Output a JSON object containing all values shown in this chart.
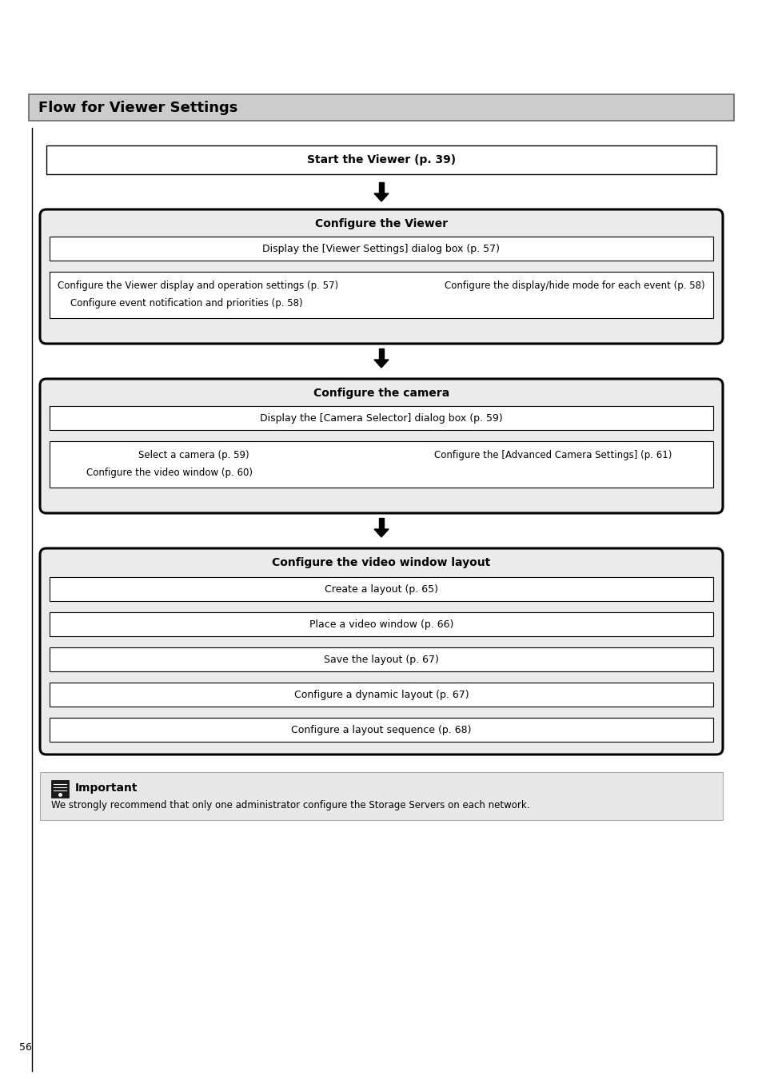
{
  "title": "Flow for Viewer Settings",
  "title_bg": "#cccccc",
  "page_bg": "#ffffff",
  "outer_box_bg": "#ebebeb",
  "inner_box_bg": "#ffffff",
  "section1_title": "Start the Viewer (p. 39)",
  "section2_title": "Configure the Viewer",
  "section2_box1": "Display the [Viewer Settings] dialog box (p. 57)",
  "section2_box2_left": "Configure the Viewer display and operation settings (p. 57)",
  "section2_box2_right": "Configure the display/hide mode for each event (p. 58)",
  "section2_box2_bottom": "Configure event notification and priorities (p. 58)",
  "section3_title": "Configure the camera",
  "section3_box1": "Display the [Camera Selector] dialog box (p. 59)",
  "section3_box2_left": "Select a camera (p. 59)",
  "section3_box2_right": "Configure the [Advanced Camera Settings] (p. 61)",
  "section3_box2_bottom": "Configure the video window (p. 60)",
  "section4_title": "Configure the video window layout",
  "section4_boxes": [
    "Create a layout (p. 65)",
    "Place a video window (p. 66)",
    "Save the layout (p. 67)",
    "Configure a dynamic layout (p. 67)",
    "Configure a layout sequence (p. 68)"
  ],
  "important_title": "Important",
  "important_text": "We strongly recommend that only one administrator configure the Storage Servers on each network.",
  "page_number": "56"
}
